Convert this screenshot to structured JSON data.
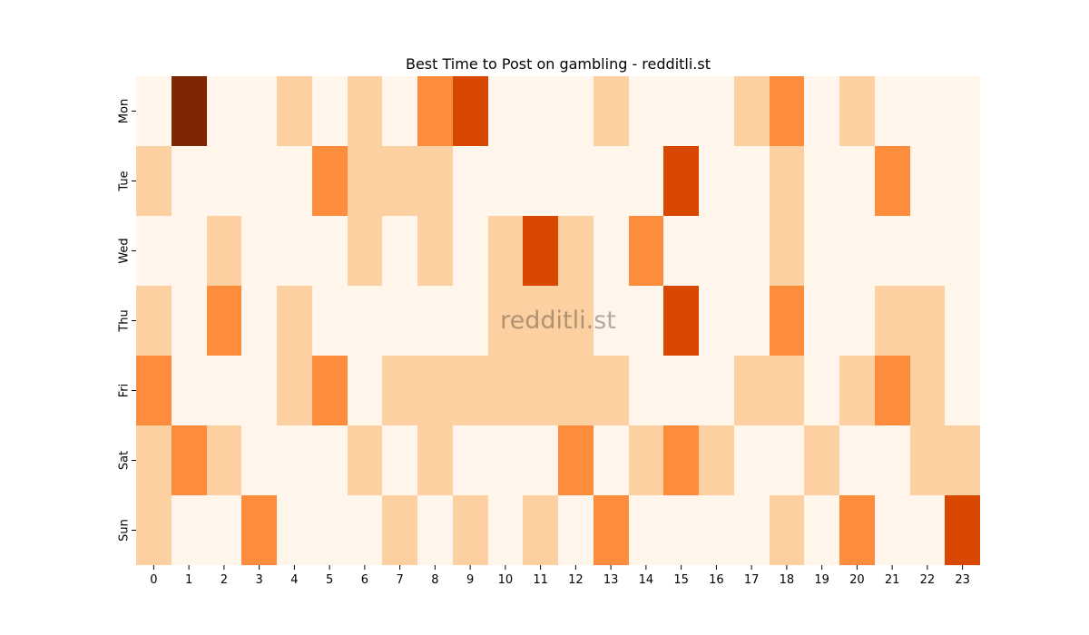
{
  "chart_data": {
    "type": "heatmap",
    "title": "Best Time to Post on gambling - redditli.st",
    "watermark": "redditli.st",
    "xlabel": "",
    "ylabel": "",
    "x_categories": [
      "0",
      "1",
      "2",
      "3",
      "4",
      "5",
      "6",
      "7",
      "8",
      "9",
      "10",
      "11",
      "12",
      "13",
      "14",
      "15",
      "16",
      "17",
      "18",
      "19",
      "20",
      "21",
      "22",
      "23"
    ],
    "y_categories": [
      "Mon",
      "Tue",
      "Wed",
      "Thu",
      "Fri",
      "Sat",
      "Sun"
    ],
    "values": [
      [
        0,
        4,
        0,
        0,
        1,
        0,
        1,
        0,
        2,
        3,
        0,
        0,
        0,
        1,
        0,
        0,
        0,
        1,
        2,
        0,
        1,
        0,
        0,
        0
      ],
      [
        1,
        0,
        0,
        0,
        0,
        2,
        1,
        1,
        1,
        0,
        0,
        0,
        0,
        0,
        0,
        3,
        0,
        0,
        1,
        0,
        0,
        2,
        0,
        0
      ],
      [
        0,
        0,
        1,
        0,
        0,
        0,
        1,
        0,
        1,
        0,
        1,
        3,
        1,
        0,
        2,
        0,
        0,
        0,
        1,
        0,
        0,
        0,
        0,
        0
      ],
      [
        1,
        0,
        2,
        0,
        1,
        0,
        0,
        0,
        0,
        0,
        1,
        1,
        1,
        0,
        0,
        3,
        0,
        0,
        2,
        0,
        0,
        1,
        1,
        0
      ],
      [
        2,
        0,
        0,
        0,
        1,
        2,
        0,
        1,
        1,
        1,
        1,
        1,
        1,
        1,
        0,
        0,
        0,
        1,
        1,
        0,
        1,
        2,
        1,
        0
      ],
      [
        1,
        2,
        1,
        0,
        0,
        0,
        1,
        0,
        1,
        0,
        0,
        0,
        2,
        0,
        1,
        2,
        1,
        0,
        0,
        1,
        0,
        0,
        1,
        1
      ],
      [
        1,
        0,
        0,
        2,
        0,
        0,
        0,
        1,
        0,
        1,
        0,
        1,
        0,
        2,
        0,
        0,
        0,
        0,
        1,
        0,
        2,
        0,
        0,
        3
      ]
    ],
    "colormap": [
      "#fff5eb",
      "#fdd0a2",
      "#fd8d3c",
      "#d94801",
      "#7f2704"
    ],
    "colorbar": false,
    "grid": false
  }
}
